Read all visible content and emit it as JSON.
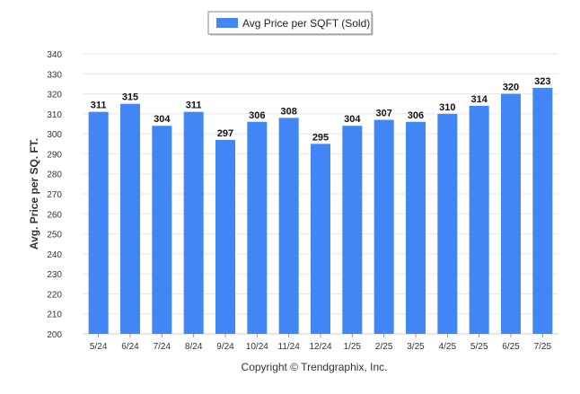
{
  "chart_data": {
    "type": "bar",
    "title": "",
    "legend": {
      "position": "top-center",
      "entries": [
        "Avg Price per SQFT (Sold)"
      ]
    },
    "xlabel": "",
    "ylabel": "Avg. Price per SQ. FT.",
    "ylim": [
      200,
      340
    ],
    "ytick_step": 10,
    "grid": true,
    "categories": [
      "5/24",
      "6/24",
      "7/24",
      "8/24",
      "9/24",
      "10/24",
      "11/24",
      "12/24",
      "1/25",
      "2/25",
      "3/25",
      "4/25",
      "5/25",
      "6/25",
      "7/25"
    ],
    "series": [
      {
        "name": "Avg Price per SQFT (Sold)",
        "color": "#4285f4",
        "values": [
          311,
          315,
          304,
          311,
          297,
          306,
          308,
          295,
          304,
          307,
          306,
          310,
          314,
          320,
          323
        ]
      }
    ],
    "footer": "Copyright © Trendgraphix, Inc."
  }
}
